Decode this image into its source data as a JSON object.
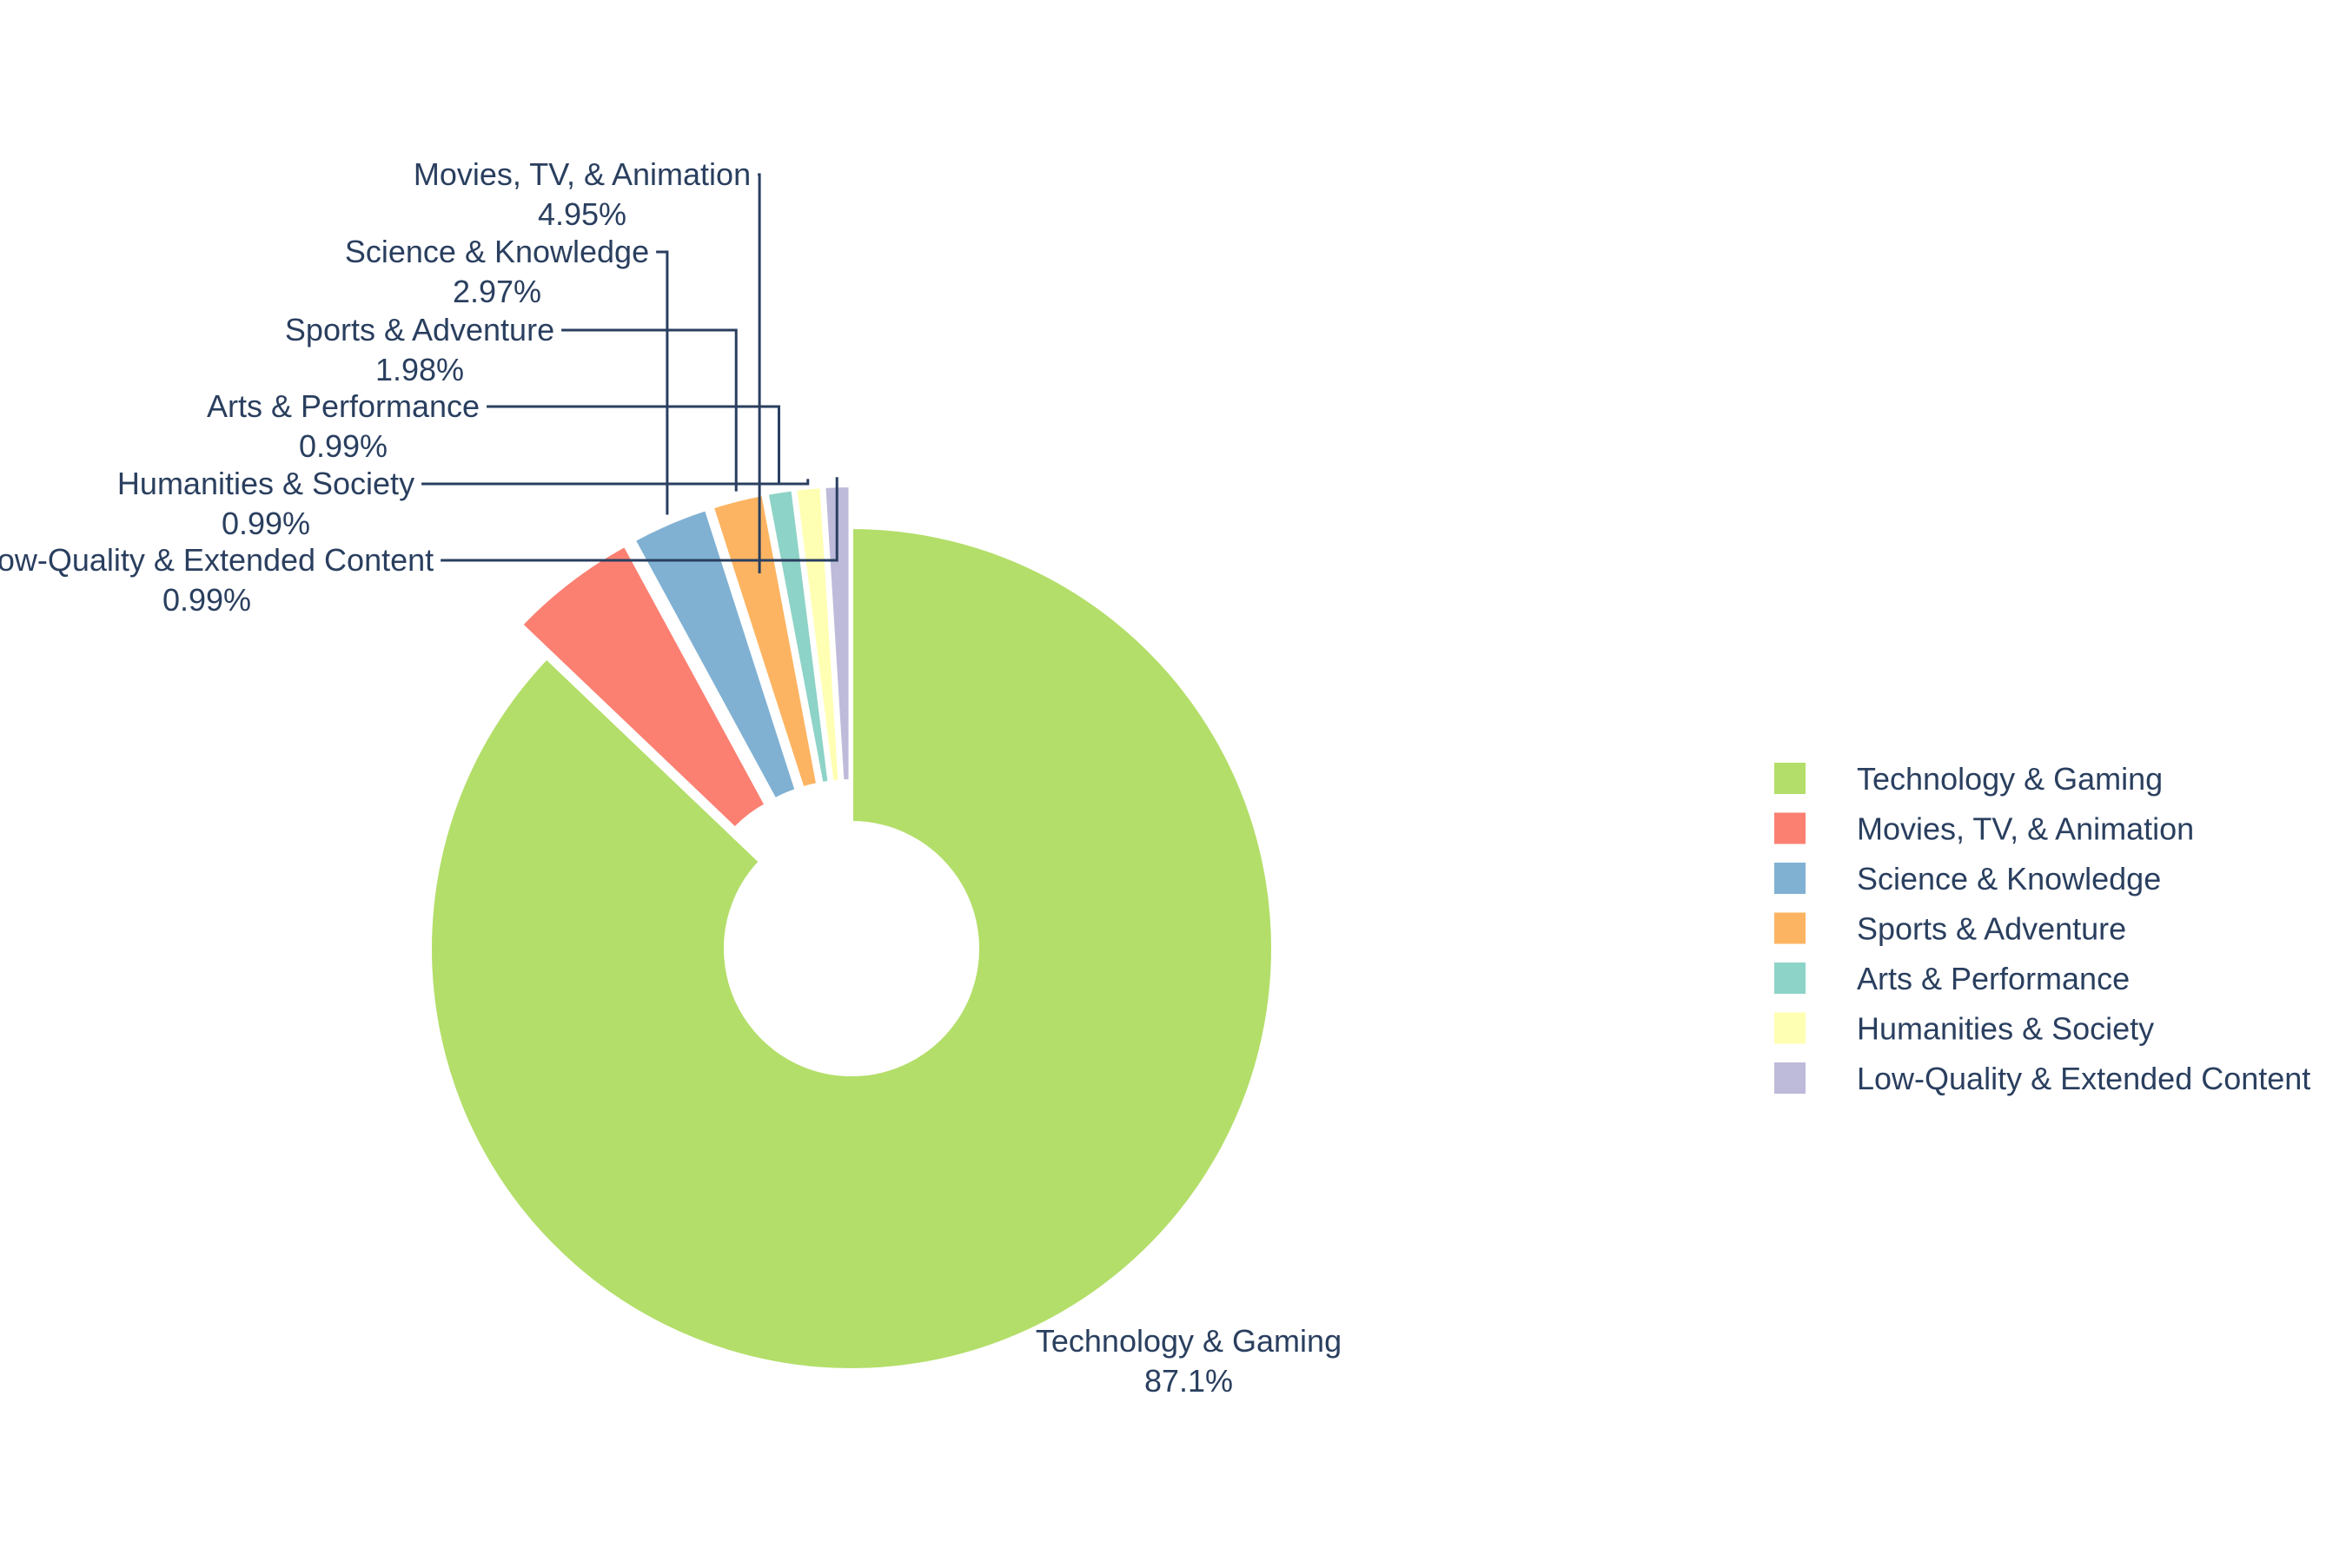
{
  "chart_data": {
    "type": "pie",
    "hole": true,
    "categories": [
      "Technology & Gaming",
      "Movies, TV, & Animation",
      "Science & Knowledge",
      "Sports & Adventure",
      "Arts & Performance",
      "Humanities & Society",
      "Low-Quality & Extended Content"
    ],
    "values": [
      87.1,
      4.95,
      2.97,
      1.98,
      0.99,
      0.99,
      0.99
    ],
    "percent_labels": [
      "87.1%",
      "4.95%",
      "2.97%",
      "1.98%",
      "0.99%",
      "0.99%",
      "0.99%"
    ],
    "colors": [
      "#b3de69",
      "#fb8072",
      "#80b1d3",
      "#fdb462",
      "#8dd3c7",
      "#ffffb3",
      "#bebada"
    ],
    "pulled": [
      false,
      true,
      true,
      true,
      true,
      true,
      true
    ],
    "legend": {
      "placement": "right",
      "entries": [
        "Technology & Gaming",
        "Movies, TV, & Animation",
        "Science & Knowledge",
        "Sports & Adventure",
        "Arts & Performance",
        "Humanities & Society",
        "Low-Quality & Extended Content"
      ]
    },
    "label_color": "#2a3f5f",
    "leader_line_color": "#2a3f5f"
  }
}
